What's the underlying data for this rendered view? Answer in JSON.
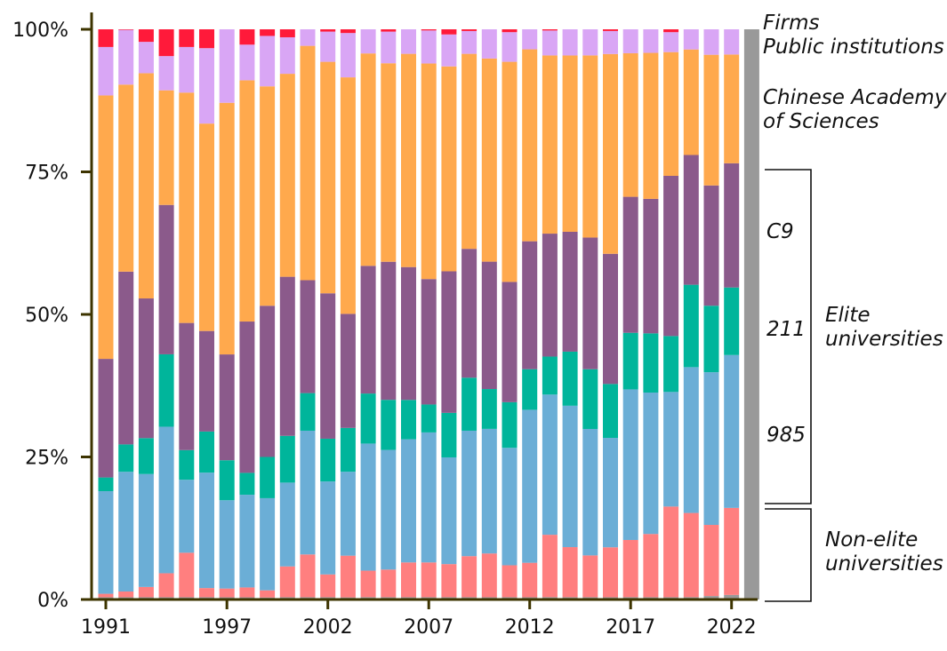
{
  "chart_data": {
    "type": "bar",
    "stacked": true,
    "normalized": true,
    "x": [
      1991,
      1992,
      1993,
      1994,
      1995,
      1996,
      1997,
      1998,
      1999,
      2000,
      2001,
      2002,
      2003,
      2004,
      2005,
      2006,
      2007,
      2008,
      2009,
      2010,
      2011,
      2012,
      2013,
      2014,
      2015,
      2016,
      2017,
      2018,
      2019,
      2020,
      2021,
      2022,
      2023
    ],
    "x_tick_labels": [
      "1991",
      "1997",
      "2002",
      "2007",
      "2012",
      "2017",
      "2022"
    ],
    "x_tick_values": [
      1991,
      1997,
      2002,
      2007,
      2012,
      2017,
      2022
    ],
    "y_tick_labels": [
      "0%",
      "25%",
      "50%",
      "75%",
      "100%"
    ],
    "y_tick_values": [
      0,
      25,
      50,
      75,
      100
    ],
    "ylim": [
      0,
      100
    ],
    "series": [
      {
        "key": "other",
        "color": "#999999",
        "values": [
          0.4,
          0.4,
          0.4,
          0.4,
          0.4,
          0.4,
          0.4,
          0.4,
          0.4,
          0.4,
          0.4,
          0.4,
          0.4,
          0.4,
          0.4,
          0.4,
          0.4,
          0.4,
          0.4,
          0.4,
          0.4,
          0.4,
          0.4,
          0.4,
          0.4,
          0.4,
          0.4,
          0.4,
          0.4,
          0.4,
          0.6,
          0.8,
          0.6
        ]
      },
      {
        "key": "nonelite",
        "color": "#FF7F7F",
        "values": [
          0.6,
          1.0,
          1.8,
          4.2,
          7.8,
          1.6,
          1.6,
          1.8,
          1.4,
          5.4,
          7.5,
          4.0,
          7.9,
          4.5,
          4.8,
          6.1,
          6.1,
          5.8,
          7.2,
          7.8,
          5.6,
          6.2,
          10.5,
          8.6,
          7.2,
          8.9,
          9.8,
          11.0,
          15.9,
          14.2,
          12.3,
          15.2,
          0
        ]
      },
      {
        "key": "c985",
        "color": "#6BAED6",
        "values": [
          18,
          21,
          19.8,
          25.7,
          12.8,
          20.2,
          16.1,
          16.9,
          18.1,
          14.7,
          21.7,
          16.3,
          15.9,
          21.6,
          20.8,
          21.6,
          22.8,
          18.7,
          22.0,
          22.2,
          20.6,
          27.5,
          23.6,
          24.3,
          21.8,
          19.5,
          25.8,
          24.6,
          20.1,
          24.6,
          26.4,
          26.7,
          0
        ]
      },
      {
        "key": "c211",
        "color": "#00B59B",
        "values": [
          2.4,
          4.8,
          6.3,
          12.7,
          5.2,
          7.2,
          7.3,
          4.0,
          8.1,
          8.2,
          6.6,
          7.5,
          8.3,
          8.5,
          8.7,
          6.9,
          4.9,
          7.8,
          9.3,
          7.1,
          8.0,
          7.3,
          6.4,
          9.3,
          10.3,
          9.6,
          9.7,
          10.3,
          9.8,
          13.9,
          11.5,
          11.8,
          0
        ]
      },
      {
        "key": "c9",
        "color": "#8B5A8B",
        "values": [
          20.8,
          30.3,
          24.5,
          26.2,
          22.3,
          17.6,
          19.3,
          27.6,
          29.7,
          27.9,
          19.8,
          25.5,
          21.6,
          21.7,
          24.0,
          23.3,
          22.0,
          24.8,
          22.6,
          22.7,
          21.1,
          23.0,
          20.7,
          20.6,
          22.7,
          23.2,
          23.3,
          23.4,
          28.1,
          21.9,
          20.8,
          21.7,
          0
        ]
      },
      {
        "key": "cas",
        "color": "#FFA94D",
        "values": [
          46.2,
          32.8,
          39.5,
          20.1,
          40.4,
          36.3,
          45.9,
          44.0,
          43.1,
          35.6,
          41.1,
          40.6,
          44.8,
          36.1,
          34.5,
          37.4,
          37.8,
          35.9,
          34.2,
          36.2,
          38.6,
          34.5,
          30.0,
          30.3,
          31.4,
          35.6,
          24.6,
          25.4,
          21.7,
          17.8,
          22.6,
          19.0,
          0
        ]
      },
      {
        "key": "public",
        "color": "#D9A6F5",
        "values": [
          8.5,
          9.6,
          5.5,
          6.0,
          8.0,
          13.2,
          13.4,
          6.5,
          9.9,
          6.4,
          2.9,
          5.3,
          8.4,
          4.1,
          5.5,
          4.3,
          5.8,
          5.6,
          4.0,
          5.2,
          5.2,
          3.6,
          4.2,
          4.5,
          4.5,
          4.1,
          4.1,
          4.1,
          3.5,
          3.4,
          4.4,
          4.4,
          0
        ]
      },
      {
        "key": "firms",
        "color": "#FF1A3A",
        "values": [
          3.1,
          0.1,
          2.2,
          4.7,
          3.1,
          3.3,
          0.0,
          2.8,
          1.3,
          1.4,
          0.0,
          0.4,
          0.7,
          0.0,
          0.4,
          0.0,
          0.2,
          0.9,
          0.3,
          0.0,
          0.5,
          0.0,
          0.2,
          0.0,
          0.0,
          0.3,
          0.0,
          0.0,
          0.5,
          0.0,
          0.0,
          0.0,
          0
        ]
      }
    ],
    "annotations": {
      "firms": "Firms",
      "public": "Public institutions",
      "cas_line1": "Chinese Academy",
      "cas_line2": "of Sciences",
      "c9": "C9",
      "c211": "211",
      "c985": "985",
      "elite_line1": "Elite",
      "elite_line2": "universities",
      "nonelite_line1": "Non-elite",
      "nonelite_line2": "universities"
    },
    "grid": false,
    "axis_color": "#3D3400"
  }
}
